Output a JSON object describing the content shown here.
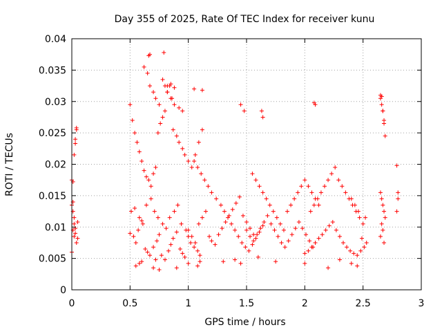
{
  "chart_data": {
    "type": "scatter",
    "title": "Day 355 of 2025, Rate Of TEC Index for receiver kunu",
    "xlabel": "GPS time / hours",
    "ylabel": "ROTI / TECUs",
    "xlim": [
      0,
      3
    ],
    "ylim": [
      0,
      0.04
    ],
    "x_ticks": [
      0,
      0.5,
      1,
      1.5,
      2,
      2.5,
      3
    ],
    "x_tick_labels": [
      "0",
      "0.5",
      "1",
      "1.5",
      "2",
      "2.5",
      "3"
    ],
    "y_ticks": [
      0,
      0.005,
      0.01,
      0.015,
      0.02,
      0.025,
      0.03,
      0.035,
      0.04
    ],
    "y_tick_labels": [
      "0",
      "0.005",
      "0.01",
      "0.015",
      "0.02",
      "0.025",
      "0.03",
      "0.035",
      "0.04"
    ],
    "grid": true,
    "marker": "+",
    "color": "#ff0000",
    "series": [
      {
        "name": "kunu",
        "x": [
          0.0,
          0.01,
          0.02,
          0.03,
          0.04,
          0.05,
          0.0,
          0.01,
          0.02,
          0.03,
          0.04,
          0.02,
          0.03,
          0.01,
          0.04,
          0.03,
          0.02,
          0.05,
          0.0,
          0.01,
          0.5,
          0.52,
          0.54,
          0.56,
          0.58,
          0.6,
          0.62,
          0.64,
          0.66,
          0.68,
          0.7,
          0.72,
          0.74,
          0.76,
          0.78,
          0.8,
          0.82,
          0.84,
          0.86,
          0.88,
          0.5,
          0.53,
          0.55,
          0.57,
          0.6,
          0.63,
          0.65,
          0.67,
          0.7,
          0.73,
          0.75,
          0.77,
          0.8,
          0.83,
          0.85,
          0.87,
          0.9,
          0.93,
          0.95,
          0.97,
          0.51,
          0.54,
          0.58,
          0.61,
          0.64,
          0.68,
          0.71,
          0.74,
          0.78,
          0.81,
          0.84,
          0.88,
          0.91,
          0.94,
          0.98,
          1.0,
          1.02,
          1.05,
          1.08,
          1.1,
          0.62,
          0.65,
          0.67,
          0.7,
          0.72,
          0.75,
          0.78,
          0.8,
          0.82,
          0.85,
          0.87,
          0.9,
          0.92,
          0.95,
          0.97,
          1.0,
          1.03,
          1.06,
          1.09,
          1.12,
          1.0,
          1.03,
          1.06,
          1.09,
          1.12,
          1.15,
          1.18,
          1.2,
          1.23,
          1.26,
          1.29,
          1.32,
          1.35,
          1.38,
          1.41,
          1.44,
          1.47,
          1.5,
          1.53,
          1.56,
          1.05,
          1.08,
          1.11,
          1.14,
          1.17,
          1.2,
          1.24,
          1.28,
          1.31,
          1.34,
          1.37,
          1.4,
          1.43,
          1.46,
          1.49,
          1.52,
          1.55,
          1.58,
          1.61,
          1.64,
          1.5,
          1.53,
          1.56,
          1.59,
          1.62,
          1.65,
          1.68,
          1.71,
          1.74,
          1.77,
          1.8,
          1.83,
          1.86,
          1.89,
          1.92,
          1.95,
          1.98,
          2.01,
          2.04,
          2.07,
          1.55,
          1.58,
          1.61,
          1.64,
          1.67,
          1.7,
          1.73,
          1.76,
          1.79,
          1.82,
          1.85,
          1.88,
          1.91,
          1.94,
          1.97,
          2.0,
          2.03,
          2.06,
          2.09,
          2.12,
          2.0,
          2.03,
          2.06,
          2.09,
          2.12,
          2.15,
          2.18,
          2.21,
          2.24,
          2.27,
          2.3,
          2.33,
          2.36,
          2.39,
          2.42,
          2.45,
          2.48,
          2.51,
          2.53,
          2.49,
          2.05,
          2.08,
          2.11,
          2.14,
          2.17,
          2.2,
          2.23,
          2.26,
          2.29,
          2.32,
          2.35,
          2.38,
          2.41,
          2.44,
          2.47,
          2.5,
          2.52,
          2.46,
          2.43,
          2.4,
          2.65,
          2.66,
          2.67,
          2.68,
          2.69,
          2.65,
          2.66,
          2.67,
          2.68,
          2.69,
          2.66,
          2.67,
          2.65,
          2.68,
          2.79,
          2.8,
          2.79,
          2.8,
          0.66,
          0.67,
          0.79,
          0.82,
          0.85,
          0.88,
          0.92,
          0.95,
          1.05,
          1.12,
          1.45,
          1.48,
          1.63,
          1.64,
          2.08,
          2.09,
          2.65,
          2.66,
          2.68,
          2.67,
          0.55,
          0.58,
          0.6,
          0.7,
          0.72,
          0.75,
          1.0,
          1.08,
          1.1,
          1.4,
          1.45,
          1.6,
          1.75,
          2.0,
          2.2,
          2.3,
          2.4,
          2.45,
          0.9,
          1.3
        ],
        "y": [
          0.0175,
          0.0125,
          0.0105,
          0.009,
          0.0075,
          0.0082,
          0.006,
          0.0095,
          0.0115,
          0.024,
          0.0255,
          0.0215,
          0.0233,
          0.014,
          0.0258,
          0.0098,
          0.0085,
          0.0108,
          0.0135,
          0.0172,
          0.0295,
          0.027,
          0.025,
          0.0235,
          0.022,
          0.0205,
          0.019,
          0.018,
          0.0175,
          0.0165,
          0.0185,
          0.0195,
          0.025,
          0.0265,
          0.0275,
          0.0285,
          0.0315,
          0.0325,
          0.0305,
          0.0295,
          0.009,
          0.0085,
          0.0075,
          0.0095,
          0.011,
          0.0065,
          0.006,
          0.0055,
          0.0068,
          0.0078,
          0.0088,
          0.0055,
          0.0048,
          0.0062,
          0.0072,
          0.0082,
          0.0092,
          0.0065,
          0.0058,
          0.0052,
          0.0125,
          0.013,
          0.0115,
          0.0105,
          0.0135,
          0.0145,
          0.0125,
          0.0115,
          0.0105,
          0.0098,
          0.0115,
          0.0125,
          0.0135,
          0.0105,
          0.0095,
          0.0085,
          0.0075,
          0.0068,
          0.0062,
          0.0055,
          0.0355,
          0.0345,
          0.0325,
          0.0315,
          0.0305,
          0.0295,
          0.0335,
          0.0325,
          0.0315,
          0.0305,
          0.0255,
          0.0245,
          0.0235,
          0.0225,
          0.0215,
          0.0205,
          0.0195,
          0.0215,
          0.0235,
          0.0255,
          0.0095,
          0.0085,
          0.0075,
          0.0105,
          0.0115,
          0.0125,
          0.0085,
          0.0078,
          0.0072,
          0.0088,
          0.0098,
          0.0108,
          0.0118,
          0.0128,
          0.0138,
          0.0148,
          0.0118,
          0.0108,
          0.0098,
          0.0088,
          0.0205,
          0.0195,
          0.0185,
          0.0175,
          0.0165,
          0.0155,
          0.0145,
          0.0135,
          0.0125,
          0.0115,
          0.0105,
          0.0095,
          0.0085,
          0.0075,
          0.0068,
          0.0062,
          0.0072,
          0.0082,
          0.0092,
          0.0102,
          0.0095,
          0.0085,
          0.0078,
          0.0088,
          0.0098,
          0.0108,
          0.0118,
          0.0105,
          0.0095,
          0.0085,
          0.0075,
          0.0068,
          0.0078,
          0.0088,
          0.0098,
          0.0108,
          0.0098,
          0.0088,
          0.0078,
          0.0068,
          0.0185,
          0.0175,
          0.0165,
          0.0155,
          0.0145,
          0.0135,
          0.0125,
          0.0115,
          0.0105,
          0.0095,
          0.0125,
          0.0135,
          0.0145,
          0.0155,
          0.0165,
          0.0175,
          0.0165,
          0.0155,
          0.0145,
          0.0135,
          0.0058,
          0.0062,
          0.0068,
          0.0075,
          0.0082,
          0.0088,
          0.0095,
          0.0102,
          0.0108,
          0.0095,
          0.0085,
          0.0075,
          0.0068,
          0.0062,
          0.0058,
          0.0055,
          0.0062,
          0.0068,
          0.0075,
          0.0082,
          0.0125,
          0.0135,
          0.0145,
          0.0155,
          0.0165,
          0.0175,
          0.0185,
          0.0195,
          0.0175,
          0.0165,
          0.0155,
          0.0145,
          0.0135,
          0.0125,
          0.0115,
          0.0105,
          0.0115,
          0.0125,
          0.0135,
          0.0145,
          0.0305,
          0.0295,
          0.0285,
          0.0265,
          0.0245,
          0.0155,
          0.0145,
          0.0135,
          0.0125,
          0.0115,
          0.0105,
          0.0095,
          0.0085,
          0.0075,
          0.0198,
          0.0145,
          0.0125,
          0.0155,
          0.0373,
          0.0375,
          0.0378,
          0.0325,
          0.0328,
          0.0322,
          0.029,
          0.0285,
          0.032,
          0.0318,
          0.0295,
          0.0285,
          0.0285,
          0.0275,
          0.0298,
          0.0295,
          0.031,
          0.0308,
          0.027,
          0.0285,
          0.0038,
          0.0042,
          0.0045,
          0.0035,
          0.0048,
          0.0032,
          0.0042,
          0.0038,
          0.0045,
          0.0048,
          0.0042,
          0.0052,
          0.0045,
          0.0042,
          0.0035,
          0.0048,
          0.0042,
          0.0038,
          0.0035,
          0.0045
        ]
      }
    ]
  }
}
